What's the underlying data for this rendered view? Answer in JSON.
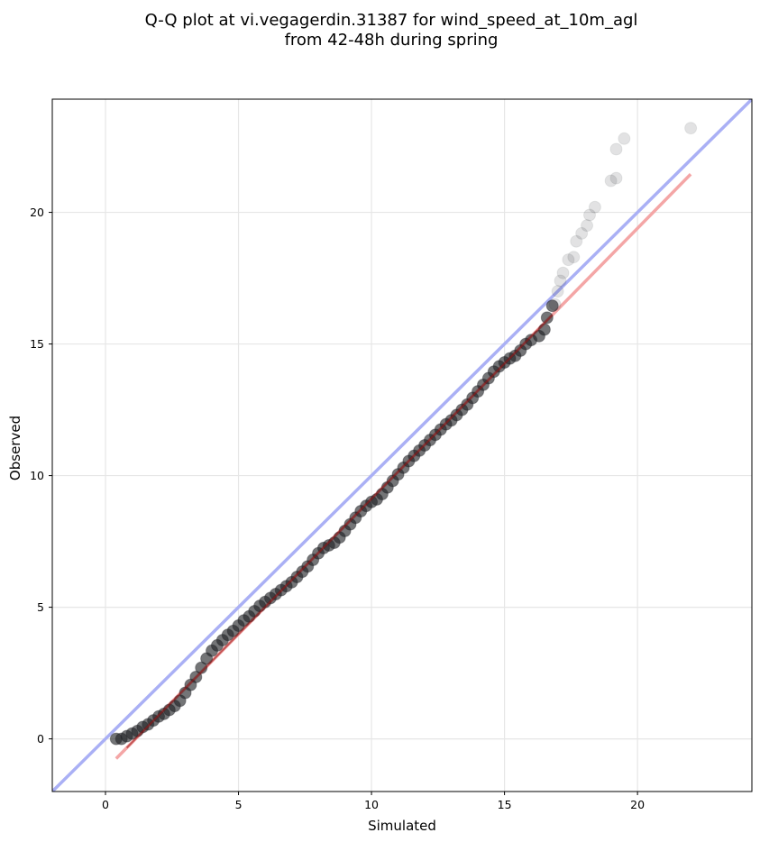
{
  "chart_data": {
    "type": "scatter",
    "title_line1": "Q-Q plot at vi.vegagerdin.31387 for wind_speed_at_10m_agl",
    "title_line2": "from 42-48h during spring",
    "xlabel": "Simulated",
    "ylabel": "Observed",
    "xlim": [
      -2,
      24.3
    ],
    "ylim": [
      -2,
      24.3
    ],
    "xticks": [
      0,
      5,
      10,
      15,
      20
    ],
    "yticks": [
      0,
      5,
      10,
      15,
      20
    ],
    "grid": true,
    "colors": {
      "points": "#1f2024",
      "reference_line": "#aab0f5",
      "fit_line": "#f4a6a6",
      "fit_line_dense": "#9a1414"
    },
    "reference_line": {
      "from": [
        -2,
        -2
      ],
      "to": [
        24.3,
        24.3
      ]
    },
    "fit_line": {
      "from": [
        0.4,
        -0.75
      ],
      "to": [
        22,
        21.45
      ]
    },
    "points": [
      [
        0.4,
        0.0
      ],
      [
        0.6,
        0.0
      ],
      [
        0.8,
        0.1
      ],
      [
        1.0,
        0.2
      ],
      [
        1.2,
        0.3
      ],
      [
        1.4,
        0.45
      ],
      [
        1.6,
        0.55
      ],
      [
        1.8,
        0.7
      ],
      [
        2.0,
        0.85
      ],
      [
        2.2,
        0.95
      ],
      [
        2.4,
        1.1
      ],
      [
        2.6,
        1.25
      ],
      [
        2.8,
        1.45
      ],
      [
        3.0,
        1.75
      ],
      [
        3.2,
        2.05
      ],
      [
        3.4,
        2.35
      ],
      [
        3.6,
        2.7
      ],
      [
        3.8,
        3.05
      ],
      [
        4.0,
        3.35
      ],
      [
        4.2,
        3.55
      ],
      [
        4.4,
        3.75
      ],
      [
        4.6,
        3.95
      ],
      [
        4.8,
        4.1
      ],
      [
        5.0,
        4.3
      ],
      [
        5.2,
        4.5
      ],
      [
        5.4,
        4.65
      ],
      [
        5.6,
        4.85
      ],
      [
        5.8,
        5.05
      ],
      [
        6.0,
        5.2
      ],
      [
        6.2,
        5.35
      ],
      [
        6.4,
        5.5
      ],
      [
        6.6,
        5.65
      ],
      [
        6.8,
        5.8
      ],
      [
        7.0,
        5.95
      ],
      [
        7.2,
        6.15
      ],
      [
        7.4,
        6.35
      ],
      [
        7.6,
        6.55
      ],
      [
        7.8,
        6.8
      ],
      [
        8.0,
        7.05
      ],
      [
        8.2,
        7.25
      ],
      [
        8.4,
        7.35
      ],
      [
        8.6,
        7.45
      ],
      [
        8.8,
        7.65
      ],
      [
        9.0,
        7.9
      ],
      [
        9.2,
        8.15
      ],
      [
        9.4,
        8.4
      ],
      [
        9.6,
        8.65
      ],
      [
        9.8,
        8.85
      ],
      [
        10.0,
        9.0
      ],
      [
        10.2,
        9.1
      ],
      [
        10.4,
        9.3
      ],
      [
        10.6,
        9.55
      ],
      [
        10.8,
        9.8
      ],
      [
        11.0,
        10.05
      ],
      [
        11.2,
        10.3
      ],
      [
        11.4,
        10.55
      ],
      [
        11.6,
        10.75
      ],
      [
        11.8,
        10.95
      ],
      [
        12.0,
        11.15
      ],
      [
        12.2,
        11.35
      ],
      [
        12.4,
        11.55
      ],
      [
        12.6,
        11.75
      ],
      [
        12.8,
        11.95
      ],
      [
        13.0,
        12.1
      ],
      [
        13.2,
        12.3
      ],
      [
        13.4,
        12.5
      ],
      [
        13.6,
        12.7
      ],
      [
        13.8,
        12.95
      ],
      [
        14.0,
        13.2
      ],
      [
        14.2,
        13.45
      ],
      [
        14.4,
        13.7
      ],
      [
        14.6,
        13.95
      ],
      [
        14.8,
        14.15
      ],
      [
        15.0,
        14.3
      ],
      [
        15.2,
        14.45
      ],
      [
        15.4,
        14.55
      ],
      [
        15.6,
        14.75
      ],
      [
        15.8,
        15.0
      ],
      [
        16.0,
        15.15
      ],
      [
        16.3,
        15.3
      ],
      [
        16.5,
        15.55
      ],
      [
        16.6,
        16.0
      ],
      [
        16.8,
        16.45
      ],
      [
        16.9,
        16.5
      ],
      [
        17.0,
        17.0
      ],
      [
        17.1,
        17.4
      ],
      [
        17.2,
        17.7
      ],
      [
        17.4,
        18.2
      ],
      [
        17.6,
        18.3
      ],
      [
        17.7,
        18.9
      ],
      [
        17.9,
        19.2
      ],
      [
        18.1,
        19.5
      ],
      [
        18.2,
        19.9
      ],
      [
        18.4,
        20.2
      ],
      [
        19.0,
        21.2
      ],
      [
        19.2,
        21.3
      ],
      [
        19.2,
        22.4
      ],
      [
        19.5,
        22.8
      ],
      [
        22.0,
        23.2
      ]
    ]
  }
}
